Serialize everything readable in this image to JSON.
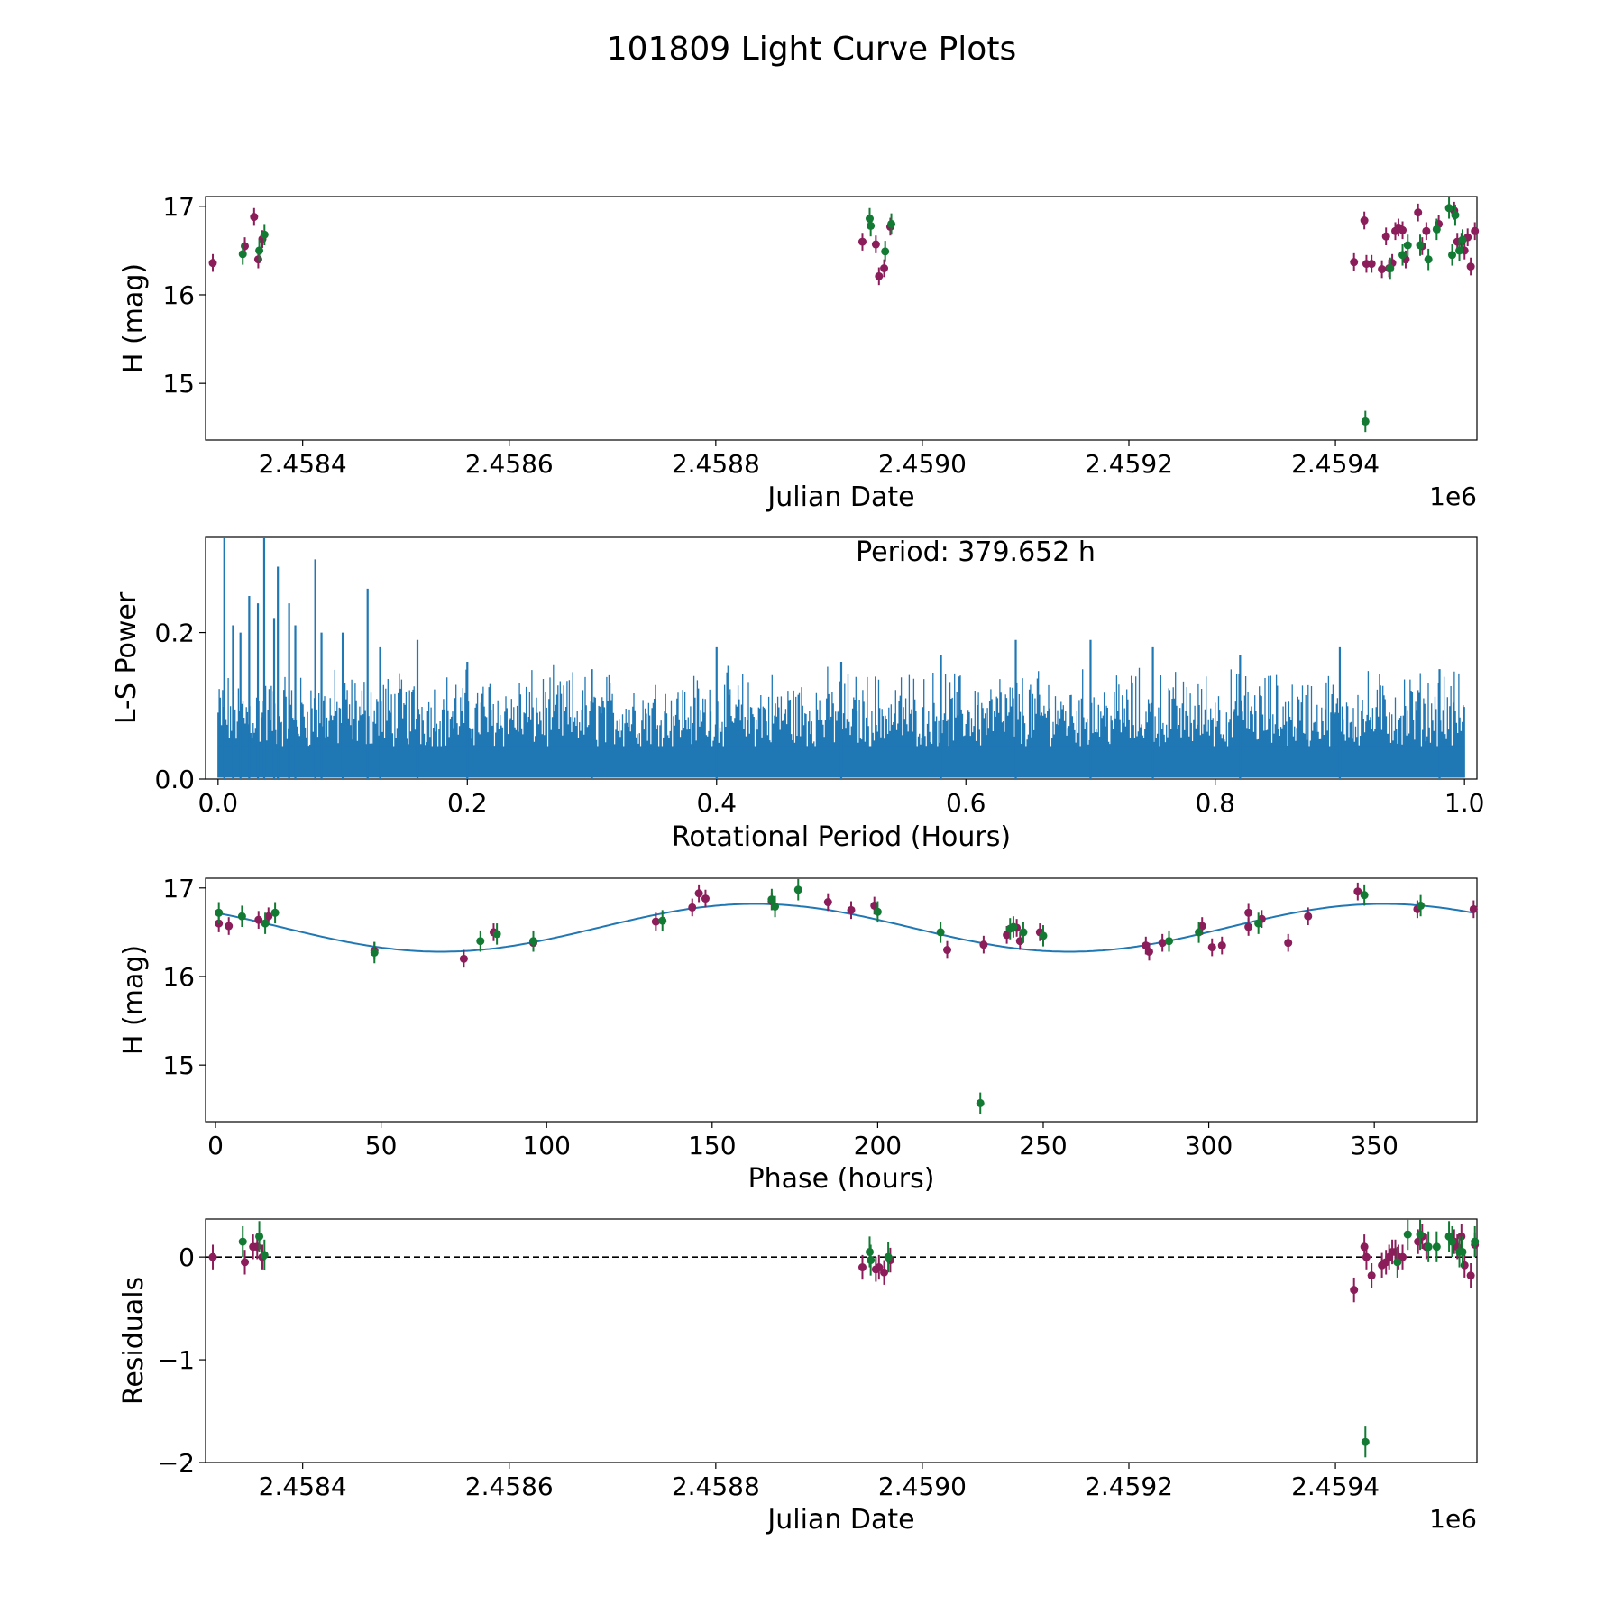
{
  "figure": {
    "title": "101809 Light Curve Plots"
  },
  "colors": {
    "filter_a": "#8b1e5a",
    "filter_b": "#127a33",
    "periodogram": "#1f77b4",
    "fit": "#1f77b4",
    "zero_line": "#000000"
  },
  "chart_data": [
    {
      "id": "lightcurve",
      "type": "scatter",
      "title": "",
      "xlabel": "Julian Date",
      "ylabel": "H (mag)",
      "offset_text": "1e6",
      "xlim": [
        2.458306,
        2.459537
      ],
      "ylim": [
        14.36,
        17.11
      ],
      "xticks": [
        2.4584,
        2.4586,
        2.4588,
        2.459,
        2.4592,
        2.4594
      ],
      "xtick_labels": [
        "2.4584",
        "2.4586",
        "2.4588",
        "2.4590",
        "2.4592",
        "2.4594"
      ],
      "yticks": [
        15,
        16,
        17
      ],
      "ytick_labels": [
        "15",
        "16",
        "17"
      ],
      "series": [
        {
          "color_key": "filter_a",
          "points": [
            [
              2.458313,
              16.36
            ],
            [
              2.458344,
              16.55
            ],
            [
              2.458353,
              16.88
            ],
            [
              2.458357,
              16.4
            ],
            [
              2.458361,
              16.63
            ],
            [
              2.458942,
              16.6
            ],
            [
              2.458955,
              16.57
            ],
            [
              2.458958,
              16.21
            ],
            [
              2.458963,
              16.3
            ],
            [
              2.458969,
              16.77
            ],
            [
              2.459418,
              16.37
            ],
            [
              2.459428,
              16.84
            ],
            [
              2.45943,
              16.35
            ],
            [
              2.459435,
              16.35
            ],
            [
              2.459445,
              16.29
            ],
            [
              2.459449,
              16.66
            ],
            [
              2.459452,
              16.3
            ],
            [
              2.459455,
              16.36
            ],
            [
              2.459458,
              16.72
            ],
            [
              2.459461,
              16.76
            ],
            [
              2.459465,
              16.73
            ],
            [
              2.459468,
              16.4
            ],
            [
              2.45948,
              16.93
            ],
            [
              2.459484,
              16.55
            ],
            [
              2.459488,
              16.72
            ],
            [
              2.4595,
              16.8
            ],
            [
              2.459515,
              16.95
            ],
            [
              2.459518,
              16.6
            ],
            [
              2.459522,
              16.6
            ],
            [
              2.459525,
              16.5
            ],
            [
              2.459528,
              16.65
            ],
            [
              2.459531,
              16.32
            ],
            [
              2.459535,
              16.72
            ]
          ],
          "errors": 0.1
        },
        {
          "color_key": "filter_b",
          "points": [
            [
              2.458342,
              16.46
            ],
            [
              2.458358,
              16.5
            ],
            [
              2.458363,
              16.68
            ],
            [
              2.458949,
              16.86
            ],
            [
              2.45895,
              16.78
            ],
            [
              2.458964,
              16.49
            ],
            [
              2.45897,
              16.8
            ],
            [
              2.459429,
              14.57
            ],
            [
              2.459453,
              16.3
            ],
            [
              2.459465,
              16.45
            ],
            [
              2.45947,
              16.56
            ],
            [
              2.459482,
              16.56
            ],
            [
              2.45949,
              16.4
            ],
            [
              2.459498,
              16.74
            ],
            [
              2.45951,
              16.98
            ],
            [
              2.459513,
              16.45
            ],
            [
              2.459516,
              16.9
            ],
            [
              2.45952,
              16.5
            ],
            [
              2.459523,
              16.62
            ]
          ],
          "errors": 0.12
        }
      ]
    },
    {
      "id": "periodogram",
      "type": "line",
      "title": "",
      "annotation": "Period: 379.652 h",
      "xlabel": "Rotational Period (Hours)",
      "ylabel": "L-S Power",
      "xlim": [
        -0.01,
        1.01
      ],
      "ylim": [
        0.0,
        0.33
      ],
      "xticks": [
        0.0,
        0.2,
        0.4,
        0.6,
        0.8,
        1.0
      ],
      "xtick_labels": [
        "0.0",
        "0.2",
        "0.4",
        "0.6",
        "0.8",
        "1.0"
      ],
      "yticks": [
        0.0,
        0.2
      ],
      "ytick_labels": [
        "0.0",
        "0.2"
      ],
      "x_range": [
        0.0,
        1.0
      ],
      "peaks": [
        [
          0.005,
          0.33
        ],
        [
          0.012,
          0.21
        ],
        [
          0.018,
          0.2
        ],
        [
          0.025,
          0.25
        ],
        [
          0.032,
          0.24
        ],
        [
          0.037,
          0.33
        ],
        [
          0.045,
          0.22
        ],
        [
          0.048,
          0.29
        ],
        [
          0.057,
          0.24
        ],
        [
          0.062,
          0.21
        ],
        [
          0.078,
          0.3
        ],
        [
          0.083,
          0.2
        ],
        [
          0.1,
          0.2
        ],
        [
          0.12,
          0.26
        ],
        [
          0.13,
          0.18
        ],
        [
          0.16,
          0.19
        ],
        [
          0.2,
          0.16
        ],
        [
          0.3,
          0.15
        ],
        [
          0.4,
          0.18
        ],
        [
          0.5,
          0.16
        ],
        [
          0.58,
          0.17
        ],
        [
          0.64,
          0.19
        ],
        [
          0.7,
          0.19
        ],
        [
          0.75,
          0.18
        ],
        [
          0.82,
          0.17
        ],
        [
          0.9,
          0.18
        ],
        [
          0.98,
          0.15
        ]
      ],
      "typical_envelope": [
        0.06,
        0.16
      ]
    },
    {
      "id": "phased",
      "type": "scatter",
      "title": "",
      "xlabel": "Phase (hours)",
      "ylabel": "H (mag)",
      "xlim": [
        -3,
        381
      ],
      "ylim": [
        14.36,
        17.11
      ],
      "xticks": [
        0,
        50,
        100,
        150,
        200,
        250,
        300,
        350
      ],
      "xtick_labels": [
        "0",
        "50",
        "100",
        "150",
        "200",
        "250",
        "300",
        "350"
      ],
      "yticks": [
        15,
        16,
        17
      ],
      "ytick_labels": [
        "15",
        "16",
        "17"
      ],
      "fit": {
        "mean": 16.55,
        "amplitude": 0.27,
        "period": 189.83,
        "peak_phase": 163
      },
      "series": [
        {
          "color_key": "filter_a",
          "points": [
            [
              1,
              16.6
            ],
            [
              4,
              16.57
            ],
            [
              13,
              16.64
            ],
            [
              16,
              16.68
            ],
            [
              48,
              16.29
            ],
            [
              75,
              16.2
            ],
            [
              84,
              16.5
            ],
            [
              96,
              16.38
            ],
            [
              133,
              16.62
            ],
            [
              144,
              16.78
            ],
            [
              146,
              16.94
            ],
            [
              148,
              16.88
            ],
            [
              168,
              16.85
            ],
            [
              185,
              16.84
            ],
            [
              192,
              16.75
            ],
            [
              199,
              16.8
            ],
            [
              221,
              16.3
            ],
            [
              232,
              16.36
            ],
            [
              239,
              16.47
            ],
            [
              242,
              16.55
            ],
            [
              243,
              16.4
            ],
            [
              249,
              16.5
            ],
            [
              281,
              16.35
            ],
            [
              282,
              16.28
            ],
            [
              286,
              16.38
            ],
            [
              298,
              16.57
            ],
            [
              301,
              16.33
            ],
            [
              304,
              16.35
            ],
            [
              312,
              16.56
            ],
            [
              312,
              16.72
            ],
            [
              316,
              16.65
            ],
            [
              324,
              16.38
            ],
            [
              330,
              16.68
            ],
            [
              345,
              16.96
            ],
            [
              363,
              16.76
            ],
            [
              380,
              16.76
            ]
          ],
          "errors": 0.1
        },
        {
          "color_key": "filter_b",
          "points": [
            [
              1,
              16.72
            ],
            [
              8,
              16.68
            ],
            [
              15,
              16.6
            ],
            [
              18,
              16.72
            ],
            [
              48,
              16.27
            ],
            [
              80,
              16.4
            ],
            [
              85,
              16.48
            ],
            [
              96,
              16.4
            ],
            [
              135,
              16.63
            ],
            [
              168,
              16.87
            ],
            [
              169,
              16.79
            ],
            [
              176,
              16.98
            ],
            [
              200,
              16.73
            ],
            [
              219,
              16.5
            ],
            [
              231,
              14.57
            ],
            [
              240,
              16.54
            ],
            [
              241,
              16.56
            ],
            [
              244,
              16.5
            ],
            [
              250,
              16.46
            ],
            [
              288,
              16.4
            ],
            [
              297,
              16.5
            ],
            [
              315,
              16.6
            ],
            [
              347,
              16.92
            ],
            [
              364,
              16.8
            ]
          ],
          "errors": 0.12
        }
      ]
    },
    {
      "id": "residuals",
      "type": "scatter",
      "title": "",
      "xlabel": "Julian Date",
      "ylabel": "Residuals",
      "offset_text": "1e6",
      "xlim": [
        2.458306,
        2.459537
      ],
      "ylim": [
        -2.0,
        0.37
      ],
      "xticks": [
        2.4584,
        2.4586,
        2.4588,
        2.459,
        2.4592,
        2.4594
      ],
      "xtick_labels": [
        "2.4584",
        "2.4586",
        "2.4588",
        "2.4590",
        "2.4592",
        "2.4594"
      ],
      "yticks": [
        -2,
        -1,
        0
      ],
      "ytick_labels": [
        "−2",
        "−1",
        "0"
      ],
      "zero_line": 0,
      "series": [
        {
          "color_key": "filter_a",
          "points": [
            [
              2.458313,
              0.0
            ],
            [
              2.458344,
              -0.05
            ],
            [
              2.458352,
              0.1
            ],
            [
              2.458356,
              0.1
            ],
            [
              2.458361,
              0.0
            ],
            [
              2.458942,
              -0.1
            ],
            [
              2.458955,
              -0.12
            ],
            [
              2.458958,
              -0.1
            ],
            [
              2.458963,
              -0.15
            ],
            [
              2.458969,
              -0.03
            ],
            [
              2.459418,
              -0.32
            ],
            [
              2.459428,
              0.1
            ],
            [
              2.45943,
              0.0
            ],
            [
              2.459435,
              -0.18
            ],
            [
              2.459445,
              -0.08
            ],
            [
              2.459449,
              -0.05
            ],
            [
              2.459452,
              0.0
            ],
            [
              2.459455,
              0.05
            ],
            [
              2.459458,
              0.05
            ],
            [
              2.459461,
              0.0
            ],
            [
              2.459465,
              0.0
            ],
            [
              2.45948,
              0.15
            ],
            [
              2.459484,
              0.2
            ],
            [
              2.459488,
              0.1
            ],
            [
              2.459515,
              0.15
            ],
            [
              2.459518,
              0.1
            ],
            [
              2.459522,
              0.2
            ],
            [
              2.459525,
              -0.08
            ],
            [
              2.459531,
              -0.18
            ],
            [
              2.459535,
              0.12
            ]
          ],
          "errors": 0.12
        },
        {
          "color_key": "filter_b",
          "points": [
            [
              2.458342,
              0.15
            ],
            [
              2.458358,
              0.2
            ],
            [
              2.458363,
              0.02
            ],
            [
              2.458949,
              0.05
            ],
            [
              2.45895,
              -0.03
            ],
            [
              2.458967,
              0.0
            ],
            [
              2.459429,
              -1.8
            ],
            [
              2.45946,
              -0.05
            ],
            [
              2.45947,
              0.22
            ],
            [
              2.459482,
              0.22
            ],
            [
              2.45949,
              0.1
            ],
            [
              2.459498,
              0.1
            ],
            [
              2.45951,
              0.2
            ],
            [
              2.459513,
              0.15
            ],
            [
              2.45952,
              0.05
            ],
            [
              2.459523,
              0.05
            ],
            [
              2.459535,
              0.15
            ]
          ],
          "errors": 0.15
        }
      ]
    }
  ]
}
